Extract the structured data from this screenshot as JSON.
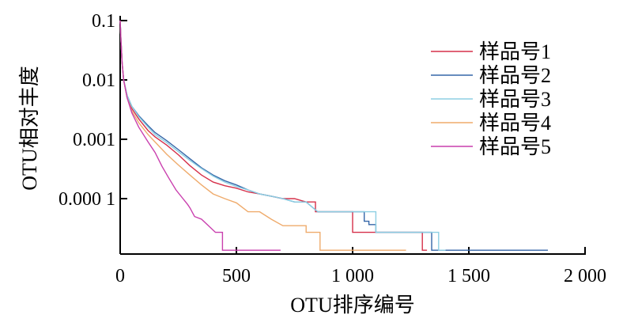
{
  "chart_data": {
    "type": "line",
    "title": "",
    "xlabel": "OTU排序编号",
    "ylabel": "OTU相对丰度",
    "xlim": [
      0,
      2000
    ],
    "ylim": [
      1.3e-05,
      0.1
    ],
    "yscale": "log",
    "x_ticks": [
      {
        "value": 0,
        "label": "0"
      },
      {
        "value": 500,
        "label": "500"
      },
      {
        "value": 1000,
        "label": "1 000"
      },
      {
        "value": 1500,
        "label": "1 500"
      },
      {
        "value": 2000,
        "label": "2 000"
      }
    ],
    "y_ticks": [
      {
        "value": 0.1,
        "label": "0.1"
      },
      {
        "value": 0.01,
        "label": "0.01"
      },
      {
        "value": 0.001,
        "label": "0.001"
      },
      {
        "value": 0.0001,
        "label": "0.000 1"
      }
    ],
    "grid": false,
    "legend_position": "top-right",
    "series": [
      {
        "name": "样品号1",
        "color": "#d6304a",
        "step": true,
        "points": [
          [
            0,
            0.1
          ],
          [
            3,
            0.05
          ],
          [
            8,
            0.02
          ],
          [
            15,
            0.01
          ],
          [
            30,
            0.005
          ],
          [
            50,
            0.0033
          ],
          [
            80,
            0.0022
          ],
          [
            120,
            0.0014
          ],
          [
            150,
            0.0011
          ],
          [
            200,
            0.0008
          ],
          [
            250,
            0.00055
          ],
          [
            300,
            0.00036
          ],
          [
            350,
            0.00025
          ],
          [
            400,
            0.00019
          ],
          [
            450,
            0.000165
          ],
          [
            500,
            0.00015
          ],
          [
            550,
            0.00013
          ],
          [
            600,
            0.00012
          ],
          [
            650,
            0.00011
          ],
          [
            700,
            0.0001
          ],
          [
            750,
            0.0001
          ],
          [
            800,
            8.8e-05
          ],
          [
            840,
            8.8e-05
          ],
          [
            840,
            6e-05
          ],
          [
            1000,
            6e-05
          ],
          [
            1000,
            2.7e-05
          ],
          [
            1300,
            2.7e-05
          ],
          [
            1300,
            1.35e-05
          ],
          [
            1320,
            1.35e-05
          ]
        ]
      },
      {
        "name": "样品号2",
        "color": "#3566a8",
        "step": true,
        "points": [
          [
            0,
            0.1
          ],
          [
            3,
            0.05
          ],
          [
            8,
            0.02
          ],
          [
            15,
            0.01
          ],
          [
            30,
            0.0055
          ],
          [
            50,
            0.0036
          ],
          [
            80,
            0.0025
          ],
          [
            120,
            0.0017
          ],
          [
            150,
            0.0013
          ],
          [
            200,
            0.00095
          ],
          [
            250,
            0.00067
          ],
          [
            300,
            0.00047
          ],
          [
            350,
            0.00033
          ],
          [
            400,
            0.00025
          ],
          [
            450,
            0.0002
          ],
          [
            500,
            0.00017
          ],
          [
            550,
            0.00014
          ],
          [
            600,
            0.00012
          ],
          [
            650,
            0.00011
          ],
          [
            700,
            0.0001
          ],
          [
            750,
            8.8e-05
          ],
          [
            800,
            8.8e-05
          ],
          [
            850,
            6e-05
          ],
          [
            1050,
            6e-05
          ],
          [
            1050,
            4.15e-05
          ],
          [
            1070,
            4.15e-05
          ],
          [
            1070,
            3.65e-05
          ],
          [
            1100,
            3.65e-05
          ],
          [
            1100,
            2.7e-05
          ],
          [
            1340,
            2.7e-05
          ],
          [
            1340,
            1.35e-05
          ],
          [
            1840,
            1.35e-05
          ]
        ]
      },
      {
        "name": "样品号3",
        "color": "#8dcfe3",
        "step": true,
        "points": [
          [
            0,
            0.1
          ],
          [
            3,
            0.05
          ],
          [
            8,
            0.02
          ],
          [
            15,
            0.01
          ],
          [
            30,
            0.0055
          ],
          [
            50,
            0.0036
          ],
          [
            80,
            0.0024
          ],
          [
            120,
            0.0016
          ],
          [
            150,
            0.0012
          ],
          [
            200,
            0.00088
          ],
          [
            250,
            0.00062
          ],
          [
            300,
            0.00044
          ],
          [
            350,
            0.00032
          ],
          [
            400,
            0.00024
          ],
          [
            450,
            0.00019
          ],
          [
            500,
            0.00016
          ],
          [
            550,
            0.00014
          ],
          [
            600,
            0.00012
          ],
          [
            650,
            0.00011
          ],
          [
            700,
            0.0001
          ],
          [
            750,
            8.8e-05
          ],
          [
            800,
            8.8e-05
          ],
          [
            850,
            6e-05
          ],
          [
            1100,
            6e-05
          ],
          [
            1100,
            2.7e-05
          ],
          [
            1370,
            2.7e-05
          ],
          [
            1370,
            1.35e-05
          ],
          [
            1400,
            1.35e-05
          ]
        ]
      },
      {
        "name": "样品号4",
        "color": "#efab6c",
        "step": true,
        "points": [
          [
            0,
            0.1
          ],
          [
            3,
            0.05
          ],
          [
            8,
            0.02
          ],
          [
            15,
            0.01
          ],
          [
            30,
            0.005
          ],
          [
            50,
            0.003
          ],
          [
            80,
            0.0019
          ],
          [
            120,
            0.0012
          ],
          [
            150,
            0.0009
          ],
          [
            200,
            0.00056
          ],
          [
            250,
            0.00037
          ],
          [
            300,
            0.00025
          ],
          [
            350,
            0.00017
          ],
          [
            400,
            0.00012
          ],
          [
            450,
            0.0001
          ],
          [
            500,
            8.5e-05
          ],
          [
            550,
            6e-05
          ],
          [
            600,
            6e-05
          ],
          [
            650,
            4.5e-05
          ],
          [
            700,
            3.5e-05
          ],
          [
            800,
            3.5e-05
          ],
          [
            800,
            2.7e-05
          ],
          [
            860,
            2.7e-05
          ],
          [
            860,
            1.35e-05
          ],
          [
            1230,
            1.35e-05
          ]
        ]
      },
      {
        "name": "样品号5",
        "color": "#c93fae",
        "step": true,
        "points": [
          [
            0,
            0.1
          ],
          [
            3,
            0.05
          ],
          [
            8,
            0.02
          ],
          [
            15,
            0.01
          ],
          [
            30,
            0.005
          ],
          [
            50,
            0.0028
          ],
          [
            80,
            0.0016
          ],
          [
            120,
            0.0009
          ],
          [
            150,
            0.0006
          ],
          [
            180,
            0.00035
          ],
          [
            210,
            0.00022
          ],
          [
            240,
            0.00014
          ],
          [
            270,
            0.0001
          ],
          [
            290,
            8e-05
          ],
          [
            300,
            7e-05
          ],
          [
            320,
            5e-05
          ],
          [
            350,
            4.5e-05
          ],
          [
            380,
            3.5e-05
          ],
          [
            410,
            2.7e-05
          ],
          [
            440,
            2.7e-05
          ],
          [
            440,
            1.35e-05
          ],
          [
            690,
            1.35e-05
          ]
        ]
      }
    ]
  }
}
